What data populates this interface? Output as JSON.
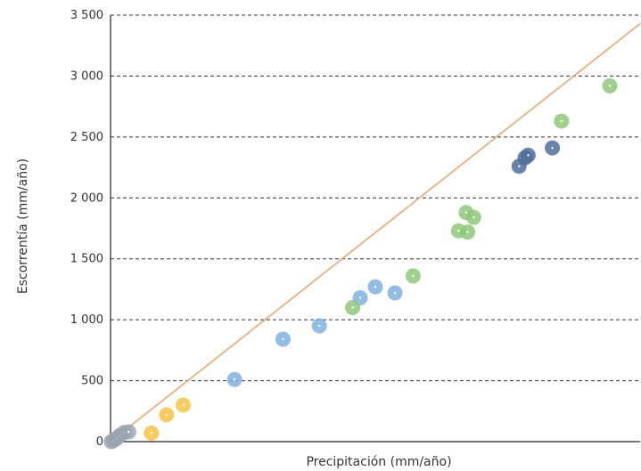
{
  "chart_data": {
    "type": "scatter",
    "title": "",
    "xlabel": "Precipitación (mm/año)",
    "ylabel": "Escorrentía (mm/año)",
    "xlim": [
      0,
      3500
    ],
    "ylim": [
      0,
      3500
    ],
    "y_ticks": [
      0,
      500,
      1000,
      1500,
      2000,
      2500,
      3000,
      3500
    ],
    "y_tick_labels": [
      "0",
      "500",
      "1 000",
      "1 500",
      "2 000",
      "2 500",
      "3 000",
      "3 500"
    ],
    "grid": "horizontal dashed",
    "legend": "none",
    "reference_line": {
      "color": "#f4a46a",
      "points": [
        [
          0,
          0
        ],
        [
          3500,
          3430
        ]
      ]
    },
    "series": [
      {
        "color": "#9aa4b0",
        "points": [
          [
            5,
            0
          ],
          [
            20,
            10
          ],
          [
            40,
            25
          ],
          [
            60,
            50
          ],
          [
            90,
            75
          ],
          [
            120,
            80
          ]
        ]
      },
      {
        "color": "#f7c444",
        "points": [
          [
            270,
            70
          ],
          [
            370,
            220
          ],
          [
            480,
            300
          ]
        ]
      },
      {
        "color": "#7fb1e0",
        "points": [
          [
            820,
            510
          ],
          [
            1140,
            840
          ],
          [
            1380,
            950
          ],
          [
            1650,
            1180
          ],
          [
            1750,
            1270
          ],
          [
            1880,
            1220
          ]
        ]
      },
      {
        "color": "#8fc87a",
        "points": [
          [
            1600,
            1100
          ],
          [
            2000,
            1360
          ],
          [
            2300,
            1730
          ],
          [
            2350,
            1880
          ],
          [
            2360,
            1720
          ],
          [
            2400,
            1840
          ],
          [
            2980,
            2630
          ],
          [
            3300,
            2920
          ]
        ]
      },
      {
        "color": "#4f6e99",
        "points": [
          [
            2700,
            2260
          ],
          [
            2740,
            2330
          ],
          [
            2760,
            2350
          ],
          [
            2920,
            2410
          ]
        ]
      }
    ]
  }
}
